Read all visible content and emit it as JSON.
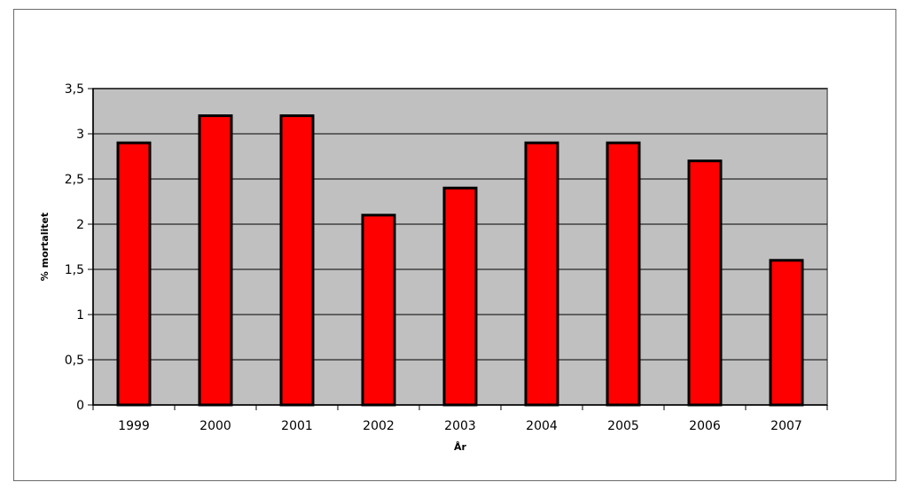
{
  "chart_data": {
    "type": "bar",
    "categories": [
      "1999",
      "2000",
      "2001",
      "2002",
      "2003",
      "2004",
      "2005",
      "2006",
      "2007"
    ],
    "values": [
      2.9,
      3.2,
      3.2,
      2.1,
      2.4,
      2.9,
      2.9,
      2.7,
      1.6
    ],
    "ylabel": "% mortalitet",
    "xlabel": "År",
    "yticks": [
      "0",
      "0,5",
      "1",
      "1,5",
      "2",
      "2,5",
      "3",
      "3,5"
    ],
    "ylim": [
      0,
      3.5
    ],
    "grid": true,
    "legend": "none",
    "colors": {
      "bar": "#ff0000",
      "plot_background": "#c0c0c0",
      "gridline": "#000000"
    }
  }
}
